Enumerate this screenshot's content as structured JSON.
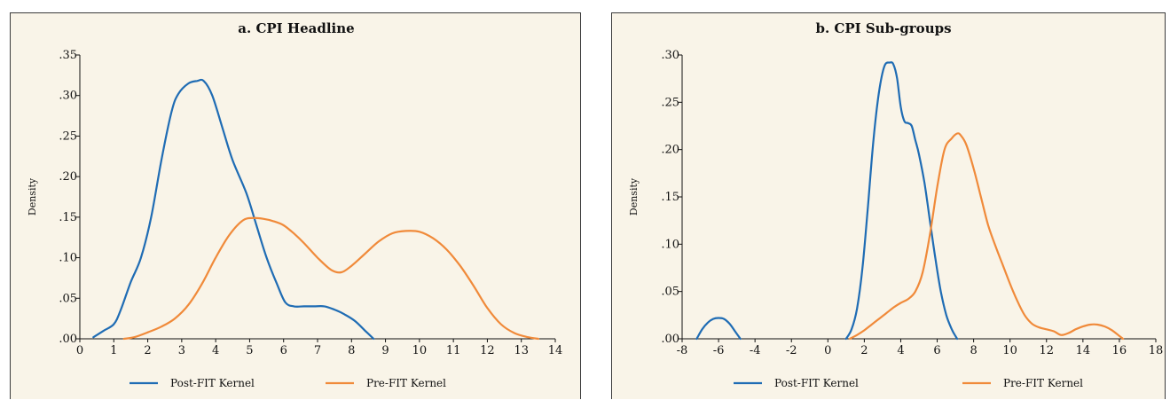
{
  "chart_data": [
    {
      "type": "line",
      "title": "a. CPI Headline",
      "xlabel": "",
      "ylabel": "Density",
      "xlim": [
        0,
        14
      ],
      "ylim": [
        0,
        0.35
      ],
      "xticks": [
        "0",
        "1",
        "2",
        "3",
        "4",
        "5",
        "6",
        "7",
        "8",
        "9",
        "10",
        "11",
        "12",
        "13",
        "14"
      ],
      "yticks": [
        ".00",
        ".05",
        ".10",
        ".15",
        ".20",
        ".25",
        ".30",
        ".35"
      ],
      "legend_position": "bottom",
      "series": [
        {
          "name": "Post-FIT Kernel",
          "color": "#1f6cb4",
          "x": [
            0.4,
            0.7,
            1.0,
            1.2,
            1.5,
            1.8,
            2.1,
            2.4,
            2.7,
            2.9,
            3.2,
            3.45,
            3.65,
            3.9,
            4.2,
            4.5,
            4.9,
            5.2,
            5.5,
            5.8,
            6.05,
            6.3,
            6.6,
            6.9,
            7.2,
            7.5,
            7.8,
            8.1,
            8.4,
            8.65
          ],
          "y": [
            0.002,
            0.01,
            0.018,
            0.035,
            0.07,
            0.1,
            0.15,
            0.22,
            0.28,
            0.302,
            0.315,
            0.318,
            0.318,
            0.3,
            0.26,
            0.22,
            0.18,
            0.14,
            0.1,
            0.068,
            0.045,
            0.04,
            0.04,
            0.04,
            0.04,
            0.036,
            0.03,
            0.022,
            0.01,
            0.0
          ]
        },
        {
          "name": "Pre-FIT Kernel",
          "color": "#f08a3a",
          "x": [
            1.3,
            1.6,
            2.0,
            2.4,
            2.8,
            3.2,
            3.6,
            4.0,
            4.4,
            4.8,
            5.1,
            5.4,
            5.7,
            6.0,
            6.3,
            6.6,
            7.0,
            7.4,
            7.7,
            8.0,
            8.4,
            8.8,
            9.2,
            9.6,
            10.0,
            10.4,
            10.8,
            11.2,
            11.6,
            12.0,
            12.4,
            12.8,
            13.2,
            13.5
          ],
          "y": [
            0.0,
            0.002,
            0.008,
            0.015,
            0.025,
            0.042,
            0.068,
            0.1,
            0.128,
            0.146,
            0.149,
            0.148,
            0.145,
            0.14,
            0.13,
            0.118,
            0.1,
            0.085,
            0.082,
            0.09,
            0.105,
            0.12,
            0.13,
            0.133,
            0.132,
            0.124,
            0.11,
            0.09,
            0.065,
            0.038,
            0.018,
            0.007,
            0.002,
            0.0
          ]
        }
      ]
    },
    {
      "type": "line",
      "title": "b. CPI Sub-groups",
      "xlabel": "",
      "ylabel": "Density",
      "xlim": [
        -8,
        18
      ],
      "ylim": [
        0,
        0.3
      ],
      "xticks": [
        "-8",
        "-6",
        "-4",
        "-2",
        "0",
        "2",
        "4",
        "6",
        "8",
        "10",
        "12",
        "14",
        "16",
        "18"
      ],
      "yticks": [
        ".00",
        ".05",
        ".10",
        ".15",
        ".20",
        ".25",
        ".30"
      ],
      "legend_position": "bottom",
      "series": [
        {
          "name": "Post-FIT Kernel",
          "color": "#1f6cb4",
          "x": [
            -7.2,
            -6.9,
            -6.6,
            -6.3,
            -6.0,
            -5.7,
            -5.4,
            -5.1,
            -4.8,
            null,
            1.0,
            1.3,
            1.6,
            1.9,
            2.2,
            2.5,
            2.8,
            3.1,
            3.4,
            3.6,
            3.8,
            4.0,
            4.2,
            4.4,
            4.6,
            4.8,
            5.0,
            5.3,
            5.6,
            5.9,
            6.2,
            6.5,
            6.8,
            7.0,
            7.1
          ],
          "y": [
            0.0,
            0.01,
            0.017,
            0.021,
            0.022,
            0.021,
            0.016,
            0.008,
            0.0,
            null,
            0.0,
            0.01,
            0.032,
            0.075,
            0.14,
            0.21,
            0.26,
            0.288,
            0.292,
            0.29,
            0.275,
            0.245,
            0.23,
            0.228,
            0.225,
            0.21,
            0.195,
            0.165,
            0.125,
            0.085,
            0.05,
            0.025,
            0.01,
            0.003,
            0.0
          ]
        },
        {
          "name": "Pre-FIT Kernel",
          "color": "#f08a3a",
          "x": [
            1.2,
            1.6,
            2.0,
            2.4,
            2.8,
            3.2,
            3.6,
            4.0,
            4.4,
            4.8,
            5.2,
            5.6,
            6.0,
            6.4,
            6.8,
            7.1,
            7.3,
            7.6,
            8.0,
            8.4,
            8.8,
            9.2,
            9.6,
            10.0,
            10.4,
            10.8,
            11.2,
            11.6,
            12.0,
            12.4,
            12.8,
            13.2,
            13.6,
            14.0,
            14.4,
            14.8,
            15.2,
            15.6,
            16.0,
            16.2
          ],
          "y": [
            0.0,
            0.004,
            0.009,
            0.015,
            0.021,
            0.027,
            0.033,
            0.038,
            0.042,
            0.05,
            0.07,
            0.11,
            0.16,
            0.2,
            0.212,
            0.217,
            0.215,
            0.205,
            0.18,
            0.15,
            0.12,
            0.098,
            0.078,
            0.058,
            0.04,
            0.025,
            0.016,
            0.012,
            0.01,
            0.008,
            0.004,
            0.006,
            0.01,
            0.013,
            0.015,
            0.015,
            0.013,
            0.009,
            0.003,
            0.0
          ]
        }
      ]
    }
  ]
}
